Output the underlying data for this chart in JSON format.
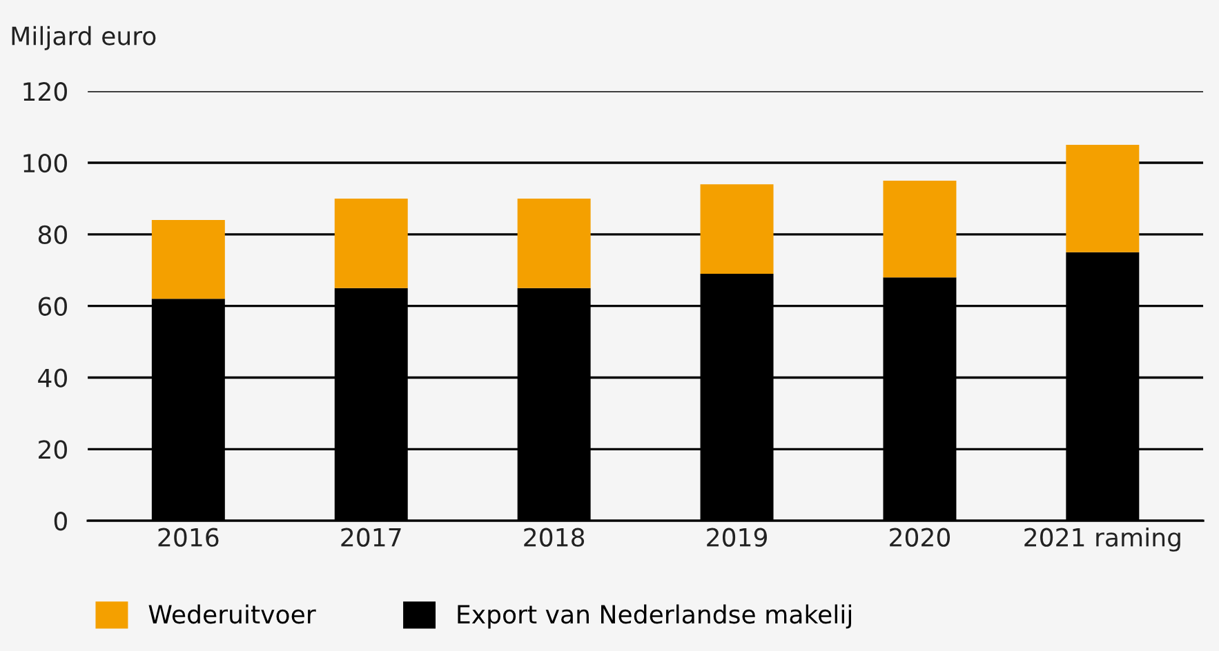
{
  "chart_data": {
    "type": "bar",
    "stacked": true,
    "ylabel": "Miljard euro",
    "categories": [
      "2016",
      "2017",
      "2018",
      "2019",
      "2020",
      "2021 raming"
    ],
    "series": [
      {
        "name": "Export van Nederlandse makelij",
        "color": "#000000",
        "values": [
          62,
          65,
          65,
          69,
          68,
          75
        ]
      },
      {
        "name": "Wederuitvoer",
        "color": "#f4a000",
        "values": [
          22,
          25,
          25,
          25,
          27,
          30
        ]
      }
    ],
    "ylim": [
      0,
      120
    ],
    "yticks": [
      0,
      20,
      40,
      60,
      80,
      100,
      120
    ],
    "grid": "y",
    "legend": "bottom"
  }
}
